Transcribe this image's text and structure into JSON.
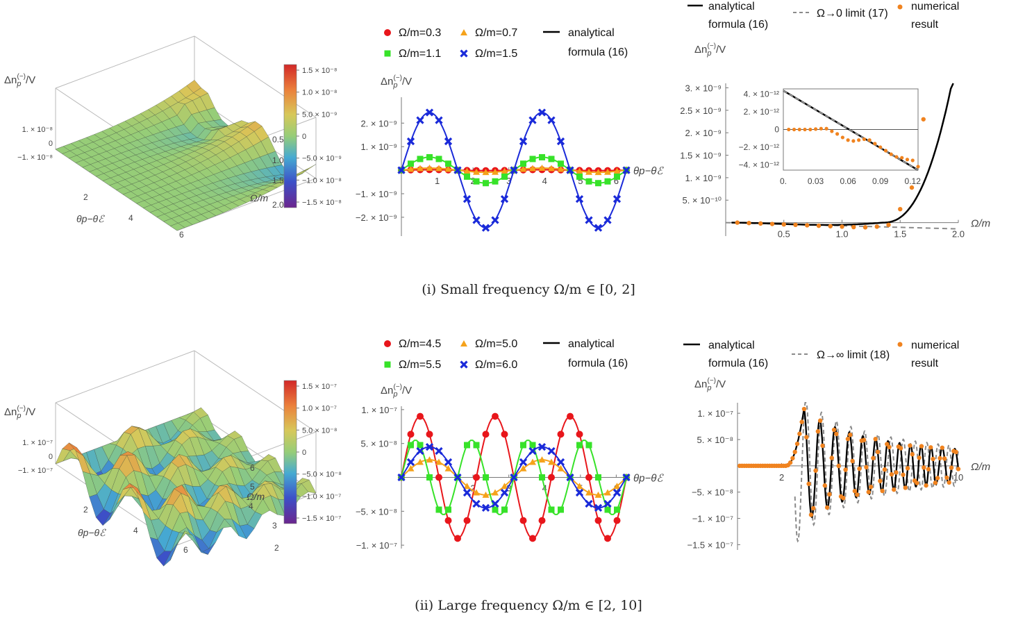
{
  "captions": {
    "top": "(i) Small frequency Ω/m ∈ [0, 2]",
    "bottom": "(ii) Large frequency Ω/m ∈ [2, 10]"
  },
  "labels": {
    "dn": "Δn",
    "dn_sub": "p",
    "dn_sup": "(−)",
    "dn_tail": "/V",
    "theta_axis": "θp−θℰ",
    "omega_axis": "Ω/m"
  },
  "colors": {
    "red": "#e8161b",
    "orange": "#f5a21b",
    "green": "#37e229",
    "blue": "#1a2ad9",
    "numerical": "#f0831f",
    "black": "#000000",
    "dashed": "#8a8a8a"
  },
  "chart_data": [
    {
      "id": "3d-small",
      "type": "surface",
      "zlabel": "Δn(−)p/V",
      "xlabel": "θp−θℰ",
      "ylabel": "Ω/m",
      "x_ticks": [
        "2",
        "4",
        "6"
      ],
      "y_ticks": [
        "0.5",
        "1.0",
        "1.5",
        "2.0"
      ],
      "z_ticks": [
        "1. × 10⁻⁸",
        "0",
        "−1. × 10⁻⁸"
      ],
      "colorbar_ticks": [
        "1.5 × 10⁻⁸",
        "1.0 × 10⁻⁸",
        "5.0 × 10⁻⁹",
        "0",
        "−5.0 × 10⁻⁹",
        "−1.0 × 10⁻⁸",
        "−1.5 × 10⁻⁸"
      ],
      "zlim": [
        -1.5e-08,
        1.5e-08
      ]
    },
    {
      "id": "curves-small",
      "type": "line",
      "xlabel": "θp−θℰ",
      "ylabel": "Δn(−)p/V",
      "xlim": [
        0,
        6.2832
      ],
      "ylim": [
        -2.8e-09,
        3.1e-09
      ],
      "x_ticks": [
        "1",
        "2",
        "3",
        "4",
        "5",
        "6"
      ],
      "y_ticks": [
        {
          "v": 2e-09,
          "t": "2. × 10⁻⁹"
        },
        {
          "v": 1e-09,
          "t": "1. × 10⁻⁹"
        },
        {
          "v": -1e-09,
          "t": "−1. × 10⁻⁹"
        },
        {
          "v": -2e-09,
          "t": "−2. × 10⁻⁹"
        }
      ],
      "legend": [
        "Ω/m=0.3",
        "Ω/m=0.7",
        "Ω/m=1.1",
        "Ω/m=1.5"
      ],
      "legend_line": [
        "analytical",
        "formula (16)"
      ],
      "series": [
        {
          "name": "Ω/m=0.3",
          "marker": "circle",
          "color": "#e8161b",
          "amplitude": 2e-11,
          "harmonic": 2
        },
        {
          "name": "Ω/m=0.7",
          "marker": "triangle",
          "color": "#f5a21b",
          "amplitude": 9e-11,
          "harmonic": 2
        },
        {
          "name": "Ω/m=1.1",
          "marker": "square",
          "color": "#37e229",
          "amplitude": 5.5e-10,
          "harmonic": 2
        },
        {
          "name": "Ω/m=1.5",
          "marker": "cross",
          "color": "#1a2ad9",
          "amplitude": 2.45e-09,
          "harmonic": 2
        }
      ]
    },
    {
      "id": "freq-small",
      "type": "line",
      "xlabel": "Ω/m",
      "ylabel": "Δn(−)p/V",
      "xlim": [
        0,
        2.0
      ],
      "ylim": [
        -3e-10,
        3.1e-09
      ],
      "x_ticks": [
        {
          "v": 0.5,
          "t": "0.5"
        },
        {
          "v": 1.0,
          "t": "1.0"
        },
        {
          "v": 1.5,
          "t": "1.5"
        },
        {
          "v": 2.0,
          "t": "2.0"
        }
      ],
      "y_ticks": [
        {
          "v": 3e-09,
          "t": "3. × 10⁻⁹"
        },
        {
          "v": 2.5e-09,
          "t": "2.5 × 10⁻⁹"
        },
        {
          "v": 2e-09,
          "t": "2. × 10⁻⁹"
        },
        {
          "v": 1.5e-09,
          "t": "1.5 × 10⁻⁹"
        },
        {
          "v": 1e-09,
          "t": "1. × 10⁻⁹"
        },
        {
          "v": 5e-10,
          "t": "5. × 10⁻¹⁰"
        }
      ],
      "legend": [
        "analytical",
        "formula (16)",
        "Ω→0 limit (17)",
        "numerical",
        "result"
      ],
      "inset": {
        "xlim": [
          0,
          0.125
        ],
        "ylim": [
          -4.6e-12,
          4.6e-12
        ],
        "x_ticks": [
          {
            "v": 0,
            "t": "0."
          },
          {
            "v": 0.03,
            "t": "0.03"
          },
          {
            "v": 0.06,
            "t": "0.06"
          },
          {
            "v": 0.09,
            "t": "0.09"
          },
          {
            "v": 0.12,
            "t": "0.12"
          }
        ],
        "y_ticks": [
          {
            "v": 4e-12,
            "t": "4. × 10⁻¹²"
          },
          {
            "v": 2e-12,
            "t": "2. × 10⁻¹²"
          },
          {
            "v": 0,
            "t": "0"
          },
          {
            "v": -2e-12,
            "t": "−2. × 10⁻¹²"
          },
          {
            "v": -4e-12,
            "t": "−4. × 10⁻¹²"
          }
        ],
        "numerical": [
          [
            0.005,
            0
          ],
          [
            0.01,
            0
          ],
          [
            0.015,
            0
          ],
          [
            0.02,
            0
          ],
          [
            0.025,
            0
          ],
          [
            0.03,
            5e-14
          ],
          [
            0.035,
            1e-13
          ],
          [
            0.04,
            1e-13
          ],
          [
            0.045,
            -2e-13
          ],
          [
            0.05,
            -5e-13
          ],
          [
            0.055,
            -9e-13
          ],
          [
            0.06,
            -1.2e-12
          ],
          [
            0.065,
            -1.3e-12
          ],
          [
            0.07,
            -1.2e-12
          ],
          [
            0.075,
            -1.1e-12
          ],
          [
            0.08,
            -1.2e-12
          ],
          [
            0.085,
            -1.6e-12
          ],
          [
            0.09,
            -2e-12
          ],
          [
            0.095,
            -2.4e-12
          ],
          [
            0.1,
            -2.8e-12
          ],
          [
            0.105,
            -3.1e-12
          ],
          [
            0.11,
            -3.2e-12
          ],
          [
            0.115,
            -3.4e-12
          ],
          [
            0.12,
            -3.5e-12
          ],
          [
            0.125,
            -4.2e-12
          ]
        ]
      },
      "numerical": [
        [
          0.1,
          0
        ],
        [
          0.2,
          -1e-11
        ],
        [
          0.3,
          -2e-11
        ],
        [
          0.4,
          -3e-11
        ],
        [
          0.5,
          -4e-11
        ],
        [
          0.6,
          -5e-11
        ],
        [
          0.7,
          -6e-11
        ],
        [
          0.8,
          -7e-11
        ],
        [
          0.9,
          -8e-11
        ],
        [
          1.0,
          -9e-11
        ],
        [
          1.1,
          -1e-10
        ],
        [
          1.2,
          -1.05e-10
        ],
        [
          1.3,
          -9e-11
        ],
        [
          1.4,
          -5e-11
        ],
        [
          1.5,
          3e-10
        ],
        [
          1.6,
          7.8e-10
        ],
        [
          1.7,
          2.3e-09
        ]
      ]
    },
    {
      "id": "3d-large",
      "type": "surface",
      "zlabel": "Δn(−)p/V",
      "xlabel": "θp−θℰ",
      "ylabel": "Ω/m",
      "x_ticks": [
        "2",
        "4",
        "6"
      ],
      "y_ticks": [
        "2",
        "3",
        "4",
        "5",
        "6"
      ],
      "z_ticks": [
        "1. × 10⁻⁷",
        "0",
        "−1. × 10⁻⁷"
      ],
      "colorbar_ticks": [
        "1.5 × 10⁻⁷",
        "1.0 × 10⁻⁷",
        "5.0 × 10⁻⁸",
        "0",
        "−5.0 × 10⁻⁸",
        "−1.0 × 10⁻⁷",
        "−1.5 × 10⁻⁷"
      ],
      "zlim": [
        -1.5e-07,
        1.5e-07
      ]
    },
    {
      "id": "curves-large",
      "type": "line",
      "xlabel": "θp−θℰ",
      "ylabel": "Δn(−)p/V",
      "xlim": [
        0,
        6.2832
      ],
      "ylim": [
        -1.05e-07,
        1.05e-07
      ],
      "x_ticks": [
        "2",
        "3",
        "4",
        "5",
        "6"
      ],
      "y_ticks": [
        {
          "v": 1e-07,
          "t": "1. × 10⁻⁷"
        },
        {
          "v": 5e-08,
          "t": "5. × 10⁻⁸"
        },
        {
          "v": -5e-08,
          "t": "−5. × 10⁻⁸"
        },
        {
          "v": -1e-07,
          "t": "−1. × 10⁻⁷"
        }
      ],
      "legend": [
        "Ω/m=4.5",
        "Ω/m=5.0",
        "Ω/m=5.5",
        "Ω/m=6.0"
      ],
      "legend_line": [
        "analytical",
        "formula (16)"
      ],
      "series": [
        {
          "name": "Ω/m=4.5",
          "marker": "circle",
          "color": "#e8161b",
          "amplitude": -9e-08,
          "harmonic": 3
        },
        {
          "name": "Ω/m=5.0",
          "marker": "triangle",
          "color": "#f5a21b",
          "amplitude": 2.6e-08,
          "harmonic": 2
        },
        {
          "name": "Ω/m=5.5",
          "marker": "square",
          "color": "#37e229",
          "amplitude": 5.5e-08,
          "harmonic": 4
        },
        {
          "name": "Ω/m=6.0",
          "marker": "cross",
          "color": "#1a2ad9",
          "amplitude": 4.5e-08,
          "harmonic": 2
        }
      ]
    },
    {
      "id": "freq-large",
      "type": "line",
      "xlabel": "Ω/m",
      "ylabel": "Δn(−)p/V",
      "xlim": [
        0,
        10
      ],
      "ylim": [
        -1.6e-07,
        1.2e-07
      ],
      "x_ticks": [
        {
          "v": 2,
          "t": "2"
        },
        {
          "v": 10,
          "t": "10"
        }
      ],
      "y_ticks": [
        {
          "v": 1e-07,
          "t": "1. × 10⁻⁷"
        },
        {
          "v": 5e-08,
          "t": "5. × 10⁻⁸"
        },
        {
          "v": -5e-08,
          "t": "−5. × 10⁻⁸"
        },
        {
          "v": -1e-07,
          "t": "−1. × 10⁻⁷"
        },
        {
          "v": -1.5e-07,
          "t": "−1.5 × 10⁻⁷"
        }
      ],
      "legend": [
        "analytical",
        "formula (16)",
        "Ω→∞ limit (18)",
        "numerical",
        "result"
      ],
      "peak": {
        "x": 3.0,
        "y": 1.05e-07
      },
      "trough": {
        "x": 3.6,
        "y": -1.45e-07
      }
    }
  ]
}
